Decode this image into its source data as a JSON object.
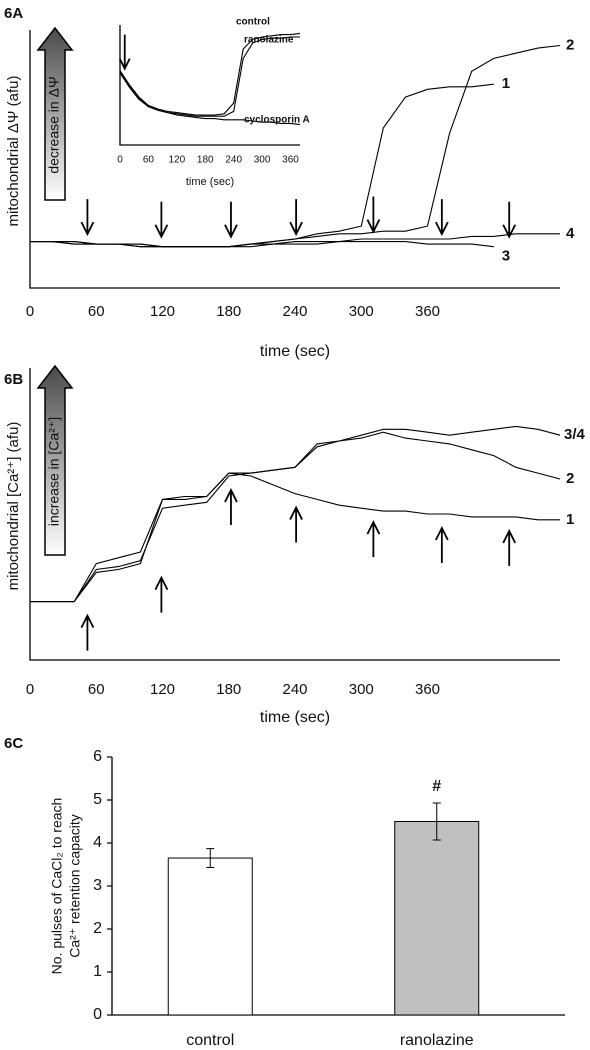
{
  "chart_data": [
    {
      "type": "line",
      "title": "6A",
      "ylabel": "mitochondrial ΔΨ (afu)",
      "indicator": "decrease in ΔΨ",
      "xlabel": "time (sec)",
      "x": [
        0,
        20,
        40,
        60,
        80,
        100,
        120,
        140,
        160,
        180,
        200,
        220,
        240,
        260,
        280,
        300,
        320,
        340,
        360,
        380,
        400,
        420,
        440,
        460,
        480
      ],
      "xlim": [
        0,
        480
      ],
      "xticks": [
        0,
        60,
        120,
        180,
        240,
        300,
        360
      ],
      "ylim": [
        0,
        100
      ],
      "series": [
        {
          "name": "1",
          "color": "#000000",
          "values": [
            18,
            18,
            18,
            17,
            17,
            17,
            16,
            16,
            16,
            16,
            17,
            18,
            19,
            21,
            22,
            24,
            62,
            74,
            77,
            78,
            78,
            79,
            null,
            null,
            null
          ]
        },
        {
          "name": "2",
          "color": "#000000",
          "values": [
            18,
            18,
            17,
            17,
            17,
            16,
            16,
            16,
            16,
            16,
            17,
            18,
            19,
            20,
            21,
            21,
            22,
            22,
            24,
            60,
            84,
            89,
            91,
            93,
            94
          ]
        },
        {
          "name": "3",
          "color": "#000000",
          "values": [
            18,
            18,
            18,
            17,
            17,
            17,
            16,
            16,
            16,
            16,
            16,
            17,
            17,
            17,
            18,
            18,
            18,
            18,
            17,
            17,
            17,
            16,
            null,
            null,
            null
          ]
        },
        {
          "name": "4",
          "color": "#000000",
          "values": [
            18,
            18,
            17,
            17,
            17,
            16,
            16,
            16,
            16,
            16,
            17,
            17,
            18,
            18,
            18,
            19,
            19,
            19,
            19,
            19,
            20,
            20,
            21,
            21,
            21
          ]
        }
      ],
      "pulse_times": [
        52,
        119,
        182,
        241,
        311,
        373,
        434
      ],
      "pulse_direction": "down"
    },
    {
      "type": "line",
      "xlabel": "time (sec)",
      "x": [
        0,
        20,
        40,
        60,
        80,
        100,
        120,
        140,
        160,
        180,
        200,
        220,
        240,
        260,
        280,
        300,
        320,
        340,
        360,
        380
      ],
      "xlim": [
        0,
        380
      ],
      "xticks": [
        0,
        60,
        120,
        180,
        240,
        300,
        360
      ],
      "ylim": [
        0,
        100
      ],
      "series": [
        {
          "name": "control",
          "color": "#000000",
          "values": [
            62,
            50,
            40,
            33,
            30,
            28,
            27,
            26,
            25,
            25,
            25,
            26,
            35,
            80,
            88,
            90,
            91,
            92,
            92,
            93
          ]
        },
        {
          "name": "ranolazine",
          "color": "#000000",
          "values": [
            60,
            48,
            38,
            32,
            29,
            27,
            26,
            25,
            24,
            24,
            24,
            24,
            28,
            72,
            85,
            88,
            89,
            89,
            90,
            90
          ]
        },
        {
          "name": "cyclosporin A",
          "color": "#000000",
          "values": [
            61,
            49,
            39,
            32,
            29,
            27,
            25,
            24,
            23,
            22,
            22,
            21,
            21,
            21,
            20,
            19,
            19,
            18,
            18,
            17
          ]
        }
      ],
      "pulse_times": [
        10
      ],
      "pulse_direction": "down"
    },
    {
      "type": "line",
      "title": "6B",
      "ylabel": "mitochondrial [Ca²⁺] (afu)",
      "indicator": "increase in [Ca²⁺]",
      "xlabel": "time (sec)",
      "x": [
        0,
        20,
        40,
        60,
        80,
        100,
        120,
        140,
        160,
        180,
        200,
        220,
        240,
        260,
        280,
        300,
        320,
        340,
        360,
        380,
        400,
        420,
        440,
        460,
        480
      ],
      "xlim": [
        0,
        480
      ],
      "xticks": [
        0,
        60,
        120,
        180,
        240,
        300,
        360
      ],
      "ylim": [
        0,
        100
      ],
      "series": [
        {
          "name": "1",
          "color": "#000000",
          "values": [
            20,
            20,
            20,
            33,
            35,
            37,
            55,
            56,
            56,
            64,
            63,
            60,
            57,
            55,
            53,
            52,
            51,
            51,
            50,
            50,
            49,
            49,
            49,
            48,
            48
          ]
        },
        {
          "name": "2",
          "color": "#000000",
          "values": [
            20,
            20,
            20,
            30,
            31,
            33,
            55,
            55,
            56,
            64,
            64,
            65,
            66,
            74,
            75,
            76,
            78,
            76,
            75,
            74,
            72,
            70,
            66,
            64,
            62
          ]
        },
        {
          "name": "3/4",
          "color": "#000000",
          "values": [
            20,
            20,
            20,
            31,
            32,
            34,
            52,
            53,
            54,
            63,
            64,
            65,
            66,
            73,
            75,
            77,
            79,
            79,
            78,
            77,
            78,
            79,
            80,
            79,
            77
          ]
        }
      ],
      "pulse_times": [
        52,
        119,
        182,
        241,
        311,
        373,
        434
      ],
      "pulse_direction": "up"
    },
    {
      "type": "bar",
      "title": "6C",
      "ylabel": [
        "No. pulses of CaCl₂ to reach",
        "Ca²⁺ retention capacity"
      ],
      "categories": [
        "control",
        "ranolazine"
      ],
      "values": [
        3.65,
        4.5
      ],
      "errors": [
        0.22,
        0.43
      ],
      "colors": [
        "#ffffff",
        "#c0c0c0"
      ],
      "annotation": "#",
      "ylim": [
        0,
        6
      ],
      "yticks": [
        0,
        1,
        2,
        3,
        4,
        5,
        6
      ]
    }
  ]
}
